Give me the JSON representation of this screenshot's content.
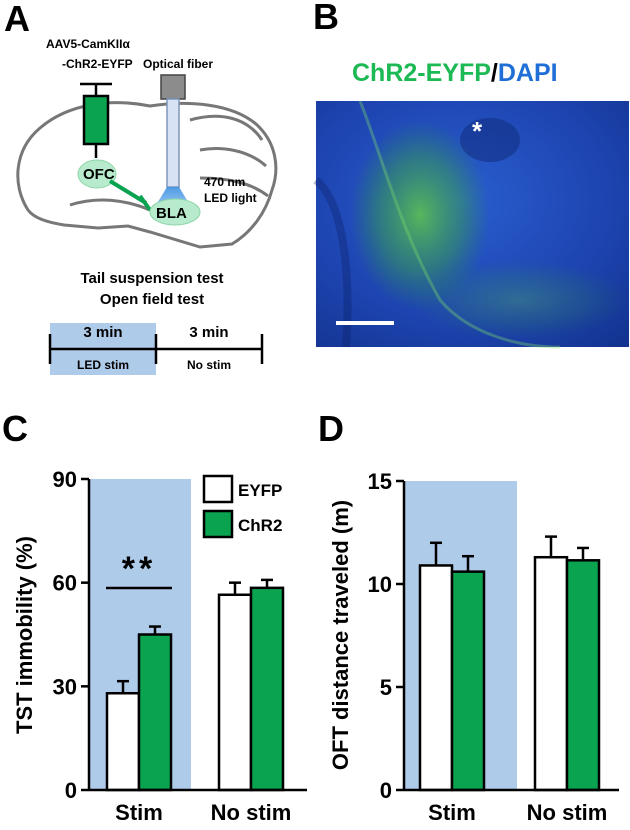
{
  "colors": {
    "eyfp": "#ffffff",
    "chr2": "#0aa350",
    "stim_shade": "#afcbea",
    "dapi": "#1f4fc4",
    "chr2_text": "#1db954",
    "dapi_text": "#1f6fd6"
  },
  "panel_a": {
    "label": "A",
    "virus_line1": "AAV5-CamKIIα",
    "virus_line2": "-ChR2-EYFP",
    "fiber_label": "Optical fiber",
    "ofc_label": "OFC",
    "bla_label": "BLA",
    "light_line1": "470 nm",
    "light_line2": "LED light",
    "test1": "Tail suspension test",
    "test2": "Open field test",
    "timeline": {
      "seg1_time": "3 min",
      "seg1_label": "LED stim",
      "seg2_time": "3 min",
      "seg2_label": "No stim"
    }
  },
  "panel_b": {
    "label": "B",
    "title_chr2": "ChR2-EYFP",
    "title_sep": "/",
    "title_dapi": "DAPI",
    "marker": "*"
  },
  "chart_data": [
    {
      "panel": "C",
      "type": "bar",
      "categories": [
        "Stim",
        "No stim"
      ],
      "ylabel": "TST immobility (%)",
      "ylim": [
        0,
        90
      ],
      "yticks": [
        0,
        30,
        60,
        90
      ],
      "legend": [
        "EYFP",
        "ChR2"
      ],
      "legend_position": "top-right",
      "shaded_category": "Stim",
      "series": [
        {
          "name": "EYFP",
          "values": [
            28,
            56.5
          ],
          "errors": [
            3.5,
            3.5
          ]
        },
        {
          "name": "ChR2",
          "values": [
            45,
            58.5
          ],
          "errors": [
            2.3,
            2.3
          ]
        }
      ],
      "annotation": {
        "text": "**",
        "category": "Stim"
      }
    },
    {
      "panel": "D",
      "type": "bar",
      "categories": [
        "Stim",
        "No stim"
      ],
      "ylabel": "OFT distance traveled (m)",
      "ylim": [
        0,
        15
      ],
      "yticks": [
        0,
        5,
        10,
        15
      ],
      "shaded_category": "Stim",
      "series": [
        {
          "name": "EYFP",
          "values": [
            10.9,
            11.3
          ],
          "errors": [
            1.1,
            1.0
          ]
        },
        {
          "name": "ChR2",
          "values": [
            10.6,
            11.15
          ],
          "errors": [
            0.75,
            0.6
          ]
        }
      ]
    }
  ]
}
